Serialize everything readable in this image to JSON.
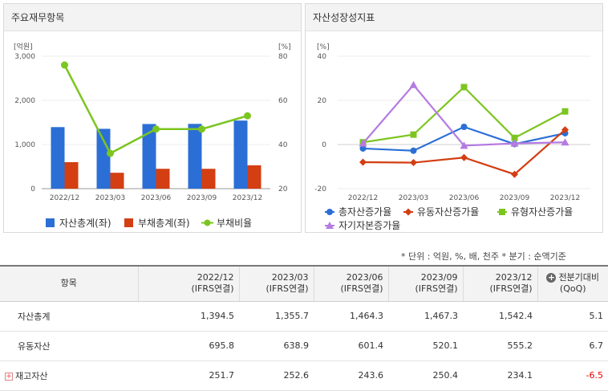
{
  "left_panel": {
    "title": "주요재무항목",
    "chart_data": {
      "type": "bar",
      "categories": [
        "2022/12",
        "2023/03",
        "2023/06",
        "2023/09",
        "2023/12"
      ],
      "y_left": {
        "unit": "[억원]",
        "ticks": [
          "0",
          "1,000",
          "2,000",
          "3,000"
        ],
        "range": [
          0,
          3000
        ]
      },
      "y_right": {
        "unit": "[%]",
        "ticks": [
          "20",
          "40",
          "60",
          "80"
        ],
        "range": [
          20,
          80
        ]
      },
      "series": [
        {
          "name": "자산총계(좌)",
          "type": "bar",
          "axis": "left",
          "color": "#2b6fd6",
          "values": [
            1394.5,
            1355.7,
            1464.3,
            1467.3,
            1542.4
          ]
        },
        {
          "name": "부채총계(좌)",
          "type": "bar",
          "axis": "left",
          "color": "#d33e12",
          "values": [
            600,
            360,
            450,
            450,
            530
          ]
        },
        {
          "name": "부채비율",
          "type": "line",
          "axis": "right",
          "color": "#7cc520",
          "values": [
            76,
            36,
            47,
            47,
            53
          ]
        }
      ]
    }
  },
  "right_panel": {
    "title": "자산성장성지표",
    "chart_data": {
      "type": "line",
      "categories": [
        "2022/12",
        "2023/03",
        "2023/06",
        "2023/09",
        "2023/12"
      ],
      "y": {
        "unit": "[%]",
        "ticks": [
          "-20",
          "0",
          "20",
          "40"
        ],
        "range": [
          -20,
          40
        ]
      },
      "series": [
        {
          "name": "총자산증가율",
          "marker": "circle",
          "color": "#2b6fd6",
          "values": [
            -1.8,
            -2.8,
            8.0,
            0.2,
            5.1
          ]
        },
        {
          "name": "유동자산증가율",
          "marker": "diamond",
          "color": "#d33e12",
          "values": [
            -8.0,
            -8.2,
            -5.9,
            -13.5,
            6.7
          ]
        },
        {
          "name": "유형자산증가율",
          "marker": "square",
          "color": "#7cc520",
          "values": [
            1.0,
            4.5,
            26.0,
            3.0,
            15.0
          ]
        },
        {
          "name": "자기자본증가율",
          "marker": "triangle",
          "color": "#b57be0",
          "values": [
            0.5,
            27.0,
            -0.5,
            0.5,
            1.0
          ]
        }
      ]
    }
  },
  "note": "* 단위 : 억원, %, 배, 천주     * 분기 : 순액기준",
  "table": {
    "header_item": "항목",
    "columns": [
      {
        "period": "2022/12",
        "basis": "(IFRS연결)"
      },
      {
        "period": "2023/03",
        "basis": "(IFRS연결)"
      },
      {
        "period": "2023/06",
        "basis": "(IFRS연결)"
      },
      {
        "period": "2023/09",
        "basis": "(IFRS연결)"
      },
      {
        "period": "2023/12",
        "basis": "(IFRS연결)"
      }
    ],
    "last_header": {
      "line1": "전분기대비",
      "line2": "(QoQ)"
    },
    "rows": [
      {
        "label": "자산총계",
        "expandable": false,
        "values": [
          "1,394.5",
          "1,355.7",
          "1,464.3",
          "1,467.3",
          "1,542.4"
        ],
        "change": "5.1",
        "negative": false
      },
      {
        "label": "유동자산",
        "expandable": false,
        "values": [
          "695.8",
          "638.9",
          "601.4",
          "520.1",
          "555.2"
        ],
        "change": "6.7",
        "negative": false
      },
      {
        "label": "재고자산",
        "expandable": true,
        "values": [
          "251.7",
          "252.6",
          "243.6",
          "250.4",
          "234.1"
        ],
        "change": "-6.5",
        "negative": true
      }
    ]
  }
}
